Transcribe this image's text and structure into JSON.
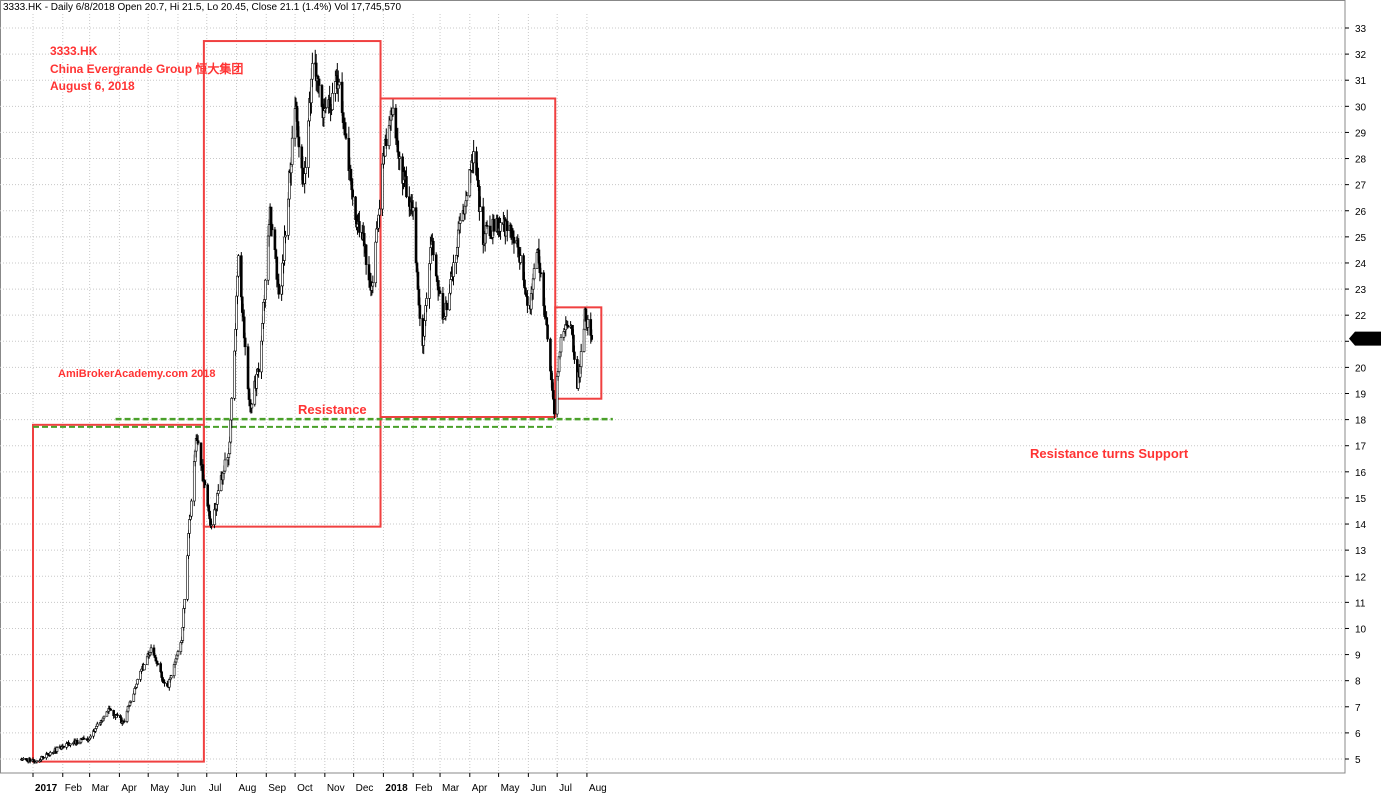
{
  "header": {
    "info_line": "3333.HK - Daily 6/8/2018 Open 20.7, Hi 21.5, Lo 20.45, Close 21.1 (1.4%) Vol 17,745,570"
  },
  "annotations": {
    "ticker": "3333.HK",
    "company": "China Evergrande Group 恒大集团",
    "date": "August 6, 2018",
    "watermark": "AmiBrokerAcademy.com  2018",
    "resistance": "Resistance",
    "support": "Resistance turns Support"
  },
  "colors": {
    "box": "#f04040",
    "dash": "#4aa02a",
    "candle": "#000000",
    "grid": "#c8c8c8",
    "price_badge": "#000000"
  },
  "chart_data": {
    "type": "candlestick",
    "ylim": [
      5,
      33
    ],
    "y_ticks": [
      5,
      6,
      7,
      8,
      9,
      10,
      11,
      12,
      13,
      14,
      15,
      16,
      17,
      18,
      19,
      20,
      21,
      22,
      23,
      24,
      25,
      26,
      27,
      28,
      29,
      30,
      31,
      32,
      33
    ],
    "x_labels": [
      "2017",
      "Feb",
      "Mar",
      "Apr",
      "May",
      "Jun",
      "Jul",
      "Aug",
      "Sep",
      "Oct",
      "Nov",
      "Dec",
      "2018",
      "Feb",
      "Mar",
      "Apr",
      "May",
      "Jun",
      "Jul",
      "Aug"
    ],
    "last_price": "21.1",
    "resistance_level": 18,
    "price_path": [
      [
        "2016-12-20",
        5.0
      ],
      [
        "2017-01-03",
        4.9
      ],
      [
        "2017-02-01",
        5.5
      ],
      [
        "2017-03-01",
        5.8
      ],
      [
        "2017-03-20",
        6.9
      ],
      [
        "2017-04-05",
        6.4
      ],
      [
        "2017-04-20",
        8.0
      ],
      [
        "2017-05-05",
        9.3
      ],
      [
        "2017-05-20",
        7.6
      ],
      [
        "2017-06-05",
        9.5
      ],
      [
        "2017-06-12",
        13.5
      ],
      [
        "2017-06-20",
        17.5
      ],
      [
        "2017-07-05",
        14.0
      ],
      [
        "2017-07-15",
        15.5
      ],
      [
        "2017-07-25",
        17.0
      ],
      [
        "2017-08-03",
        24.0
      ],
      [
        "2017-08-15",
        18.5
      ],
      [
        "2017-08-25",
        20.0
      ],
      [
        "2017-09-05",
        26.0
      ],
      [
        "2017-09-15",
        22.5
      ],
      [
        "2017-10-01",
        30.0
      ],
      [
        "2017-10-10",
        27.0
      ],
      [
        "2017-10-20",
        32.0
      ],
      [
        "2017-11-01",
        29.5
      ],
      [
        "2017-11-15",
        31.0
      ],
      [
        "2017-12-01",
        26.0
      ],
      [
        "2017-12-10",
        25.0
      ],
      [
        "2017-12-20",
        22.8
      ],
      [
        "2018-01-02",
        28.5
      ],
      [
        "2018-01-10",
        30.0
      ],
      [
        "2018-01-20",
        27.5
      ],
      [
        "2018-02-01",
        26.0
      ],
      [
        "2018-02-10",
        20.3
      ],
      [
        "2018-02-20",
        25.0
      ],
      [
        "2018-03-05",
        21.8
      ],
      [
        "2018-03-15",
        24.0
      ],
      [
        "2018-03-25",
        26.0
      ],
      [
        "2018-04-05",
        28.2
      ],
      [
        "2018-04-15",
        25.0
      ],
      [
        "2018-05-01",
        25.5
      ],
      [
        "2018-05-20",
        25.0
      ],
      [
        "2018-06-01",
        22.0
      ],
      [
        "2018-06-10",
        24.5
      ],
      [
        "2018-06-20",
        21.5
      ],
      [
        "2018-06-28",
        18.2
      ],
      [
        "2018-07-05",
        21.0
      ],
      [
        "2018-07-15",
        21.8
      ],
      [
        "2018-07-22",
        19.2
      ],
      [
        "2018-07-30",
        22.0
      ],
      [
        "2018-08-06",
        21.1
      ]
    ]
  }
}
